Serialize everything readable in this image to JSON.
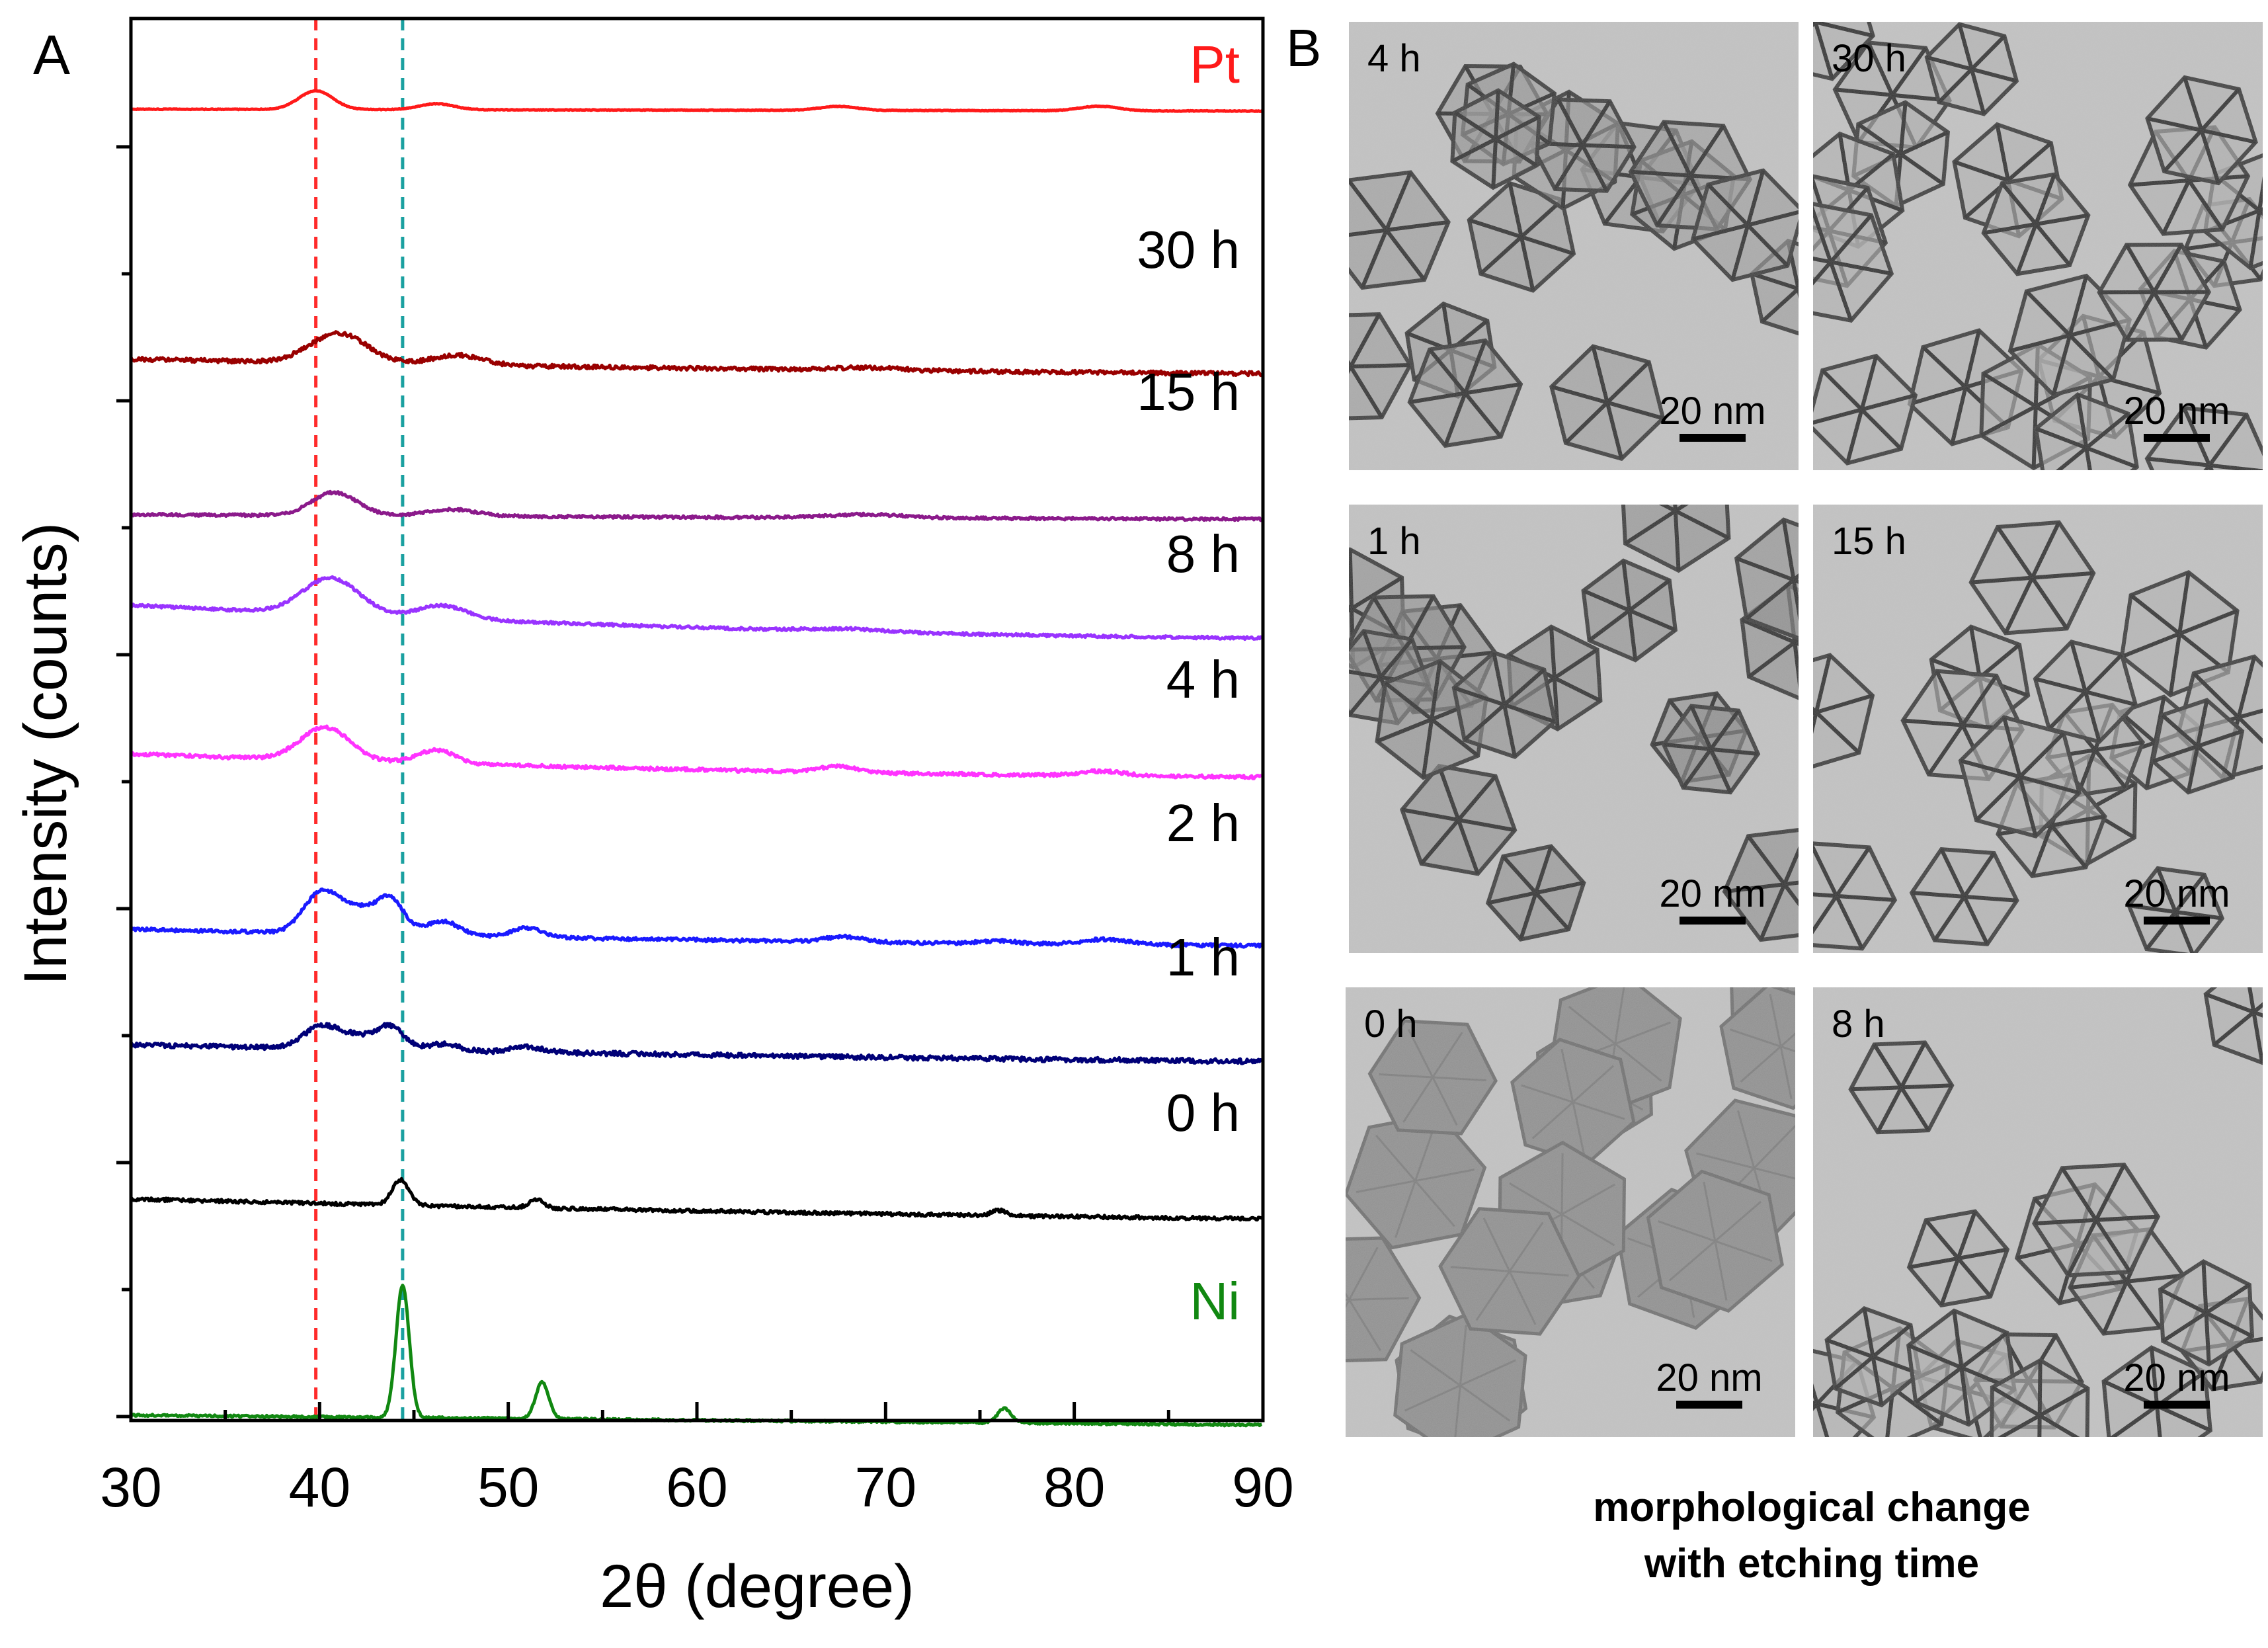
{
  "figure": {
    "panel_a_label": "A",
    "panel_b_label": "B",
    "caption_line1": "morphological change",
    "caption_line2": "with etching time"
  },
  "chart_data": {
    "type": "line",
    "title": "",
    "xlabel": "2θ (degree)",
    "ylabel": "Intensity (counts)",
    "xlim": [
      30,
      90
    ],
    "xticks": [
      "30",
      "40",
      "50",
      "60",
      "70",
      "80",
      "90"
    ],
    "grid": false,
    "legend": "inline labels at right end of each trace",
    "reference_lines": [
      {
        "name": "Pt reference",
        "x": 39.8,
        "color": "#ff2a2a",
        "style": "dashed"
      },
      {
        "name": "Ni reference",
        "x": 44.4,
        "color": "#1aa0a0",
        "style": "dashed"
      }
    ],
    "series": [
      {
        "name": "Pt",
        "color": "#ff1a1a",
        "noise": 0.5,
        "offset": 0,
        "start": 0,
        "end": -3,
        "peaks": [
          [
            39.8,
            28,
            0.9
          ],
          [
            46.2,
            9,
            0.9
          ],
          [
            67.5,
            6,
            1.0
          ],
          [
            81.3,
            7,
            1.0
          ]
        ]
      },
      {
        "name": "30 h",
        "color": "#990000",
        "noise": 3,
        "offset": 390,
        "start": 12,
        "end": -10,
        "peaks": [
          [
            41,
            45,
            1.5
          ],
          [
            47.3,
            15,
            1.3
          ],
          [
            69,
            4,
            2
          ]
        ]
      },
      {
        "name": "15 h",
        "color": "#8b1a8b",
        "noise": 2,
        "offset": 615,
        "start": 2,
        "end": -5,
        "peaks": [
          [
            40.8,
            35,
            1.2
          ],
          [
            47,
            10,
            1.3
          ],
          [
            69,
            5,
            2
          ]
        ]
      },
      {
        "name": "8 h",
        "color": "#9933ff",
        "noise": 2,
        "offset": 785,
        "start": 35,
        "end": -15,
        "peaks": [
          [
            40.6,
            55,
            1.5
          ],
          [
            46.5,
            20,
            1.3
          ],
          [
            68,
            4,
            2
          ]
        ]
      },
      {
        "name": "4 h",
        "color": "#ff33ff",
        "noise": 2.5,
        "offset": 1000,
        "start": 25,
        "end": -10,
        "peaks": [
          [
            40.3,
            50,
            1.3
          ],
          [
            46.2,
            20,
            1.0
          ],
          [
            67.5,
            9,
            1.0
          ],
          [
            81.5,
            7,
            1.2
          ]
        ]
      },
      {
        "name": "2 h",
        "color": "#1a1aff",
        "noise": 2.5,
        "offset": 1255,
        "start": 15,
        "end": -10,
        "peaks": [
          [
            40,
            55,
            0.9
          ],
          [
            42,
            38,
            1.2
          ],
          [
            43.8,
            45,
            0.7
          ],
          [
            46.5,
            22,
            0.9
          ],
          [
            51,
            14,
            0.8
          ],
          [
            67.8,
            8,
            1.0
          ],
          [
            76,
            4,
            1.0
          ],
          [
            81.7,
            8,
            1.2
          ]
        ]
      },
      {
        "name": "1 h",
        "color": "#000077",
        "noise": 3.5,
        "offset": 1425,
        "start": 10,
        "end": -15,
        "peaks": [
          [
            40,
            30,
            0.9
          ],
          [
            42,
            20,
            1.2
          ],
          [
            43.8,
            30,
            0.7
          ],
          [
            46.5,
            10,
            0.9
          ],
          [
            51,
            8,
            0.8
          ]
        ]
      },
      {
        "name": "0 h",
        "color": "#000000",
        "noise": 2.5,
        "offset": 1660,
        "start": 12,
        "end": -18,
        "peaks": [
          [
            44.3,
            38,
            0.45
          ],
          [
            51.5,
            12,
            0.4
          ],
          [
            76,
            8,
            0.4
          ]
        ]
      },
      {
        "name": "Ni",
        "color": "#118811",
        "noise": 1.5,
        "offset": 1975,
        "start": 0,
        "end": -15,
        "peaks": [
          [
            44.4,
            200,
            0.35
          ],
          [
            51.8,
            55,
            0.35
          ],
          [
            76.3,
            22,
            0.35
          ]
        ]
      }
    ]
  },
  "tem_panels": [
    {
      "label": "4 h",
      "scale": "20 nm",
      "style": "cage"
    },
    {
      "label": "30 h",
      "scale": "20 nm",
      "style": "frame-dense"
    },
    {
      "label": "1 h",
      "scale": "20 nm",
      "style": "star-aggregate"
    },
    {
      "label": "15 h",
      "scale": "20 nm",
      "style": "frame"
    },
    {
      "label": "0 h",
      "scale": "20 nm",
      "style": "solid-hexagon"
    },
    {
      "label": "8 h",
      "scale": "20 nm",
      "style": "frame"
    }
  ]
}
